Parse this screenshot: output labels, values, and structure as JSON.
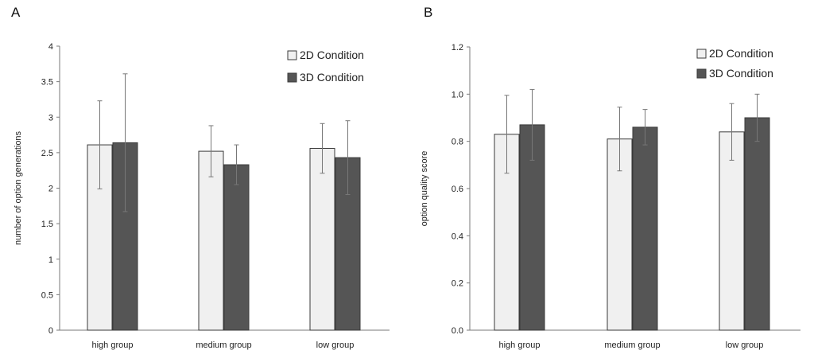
{
  "chart_data": [
    {
      "panel": "A",
      "type": "bar",
      "categories": [
        "high group",
        "medium group",
        "low group"
      ],
      "ylabel": "number of option generations",
      "xlabel": "",
      "ylim": [
        0,
        4
      ],
      "yticks": [
        "0",
        "0.5",
        "1",
        "1.5",
        "2",
        "2.5",
        "3",
        "3.5",
        "4"
      ],
      "grid": false,
      "legend_position": "top-right",
      "error_bars": true,
      "series": [
        {
          "name": "2D Condition",
          "color": "#f0f0f0",
          "values": [
            2.61,
            2.52,
            2.56
          ],
          "errors": [
            0.62,
            0.36,
            0.35
          ]
        },
        {
          "name": "3D Condition",
          "color": "#555555",
          "values": [
            2.64,
            2.33,
            2.43
          ],
          "errors": [
            0.97,
            0.28,
            0.52
          ]
        }
      ]
    },
    {
      "panel": "B",
      "type": "bar",
      "categories": [
        "high group",
        "medium group",
        "low group"
      ],
      "ylabel": "option quality score",
      "xlabel": "",
      "ylim": [
        0,
        1.2
      ],
      "yticks": [
        "0.0",
        "0.2",
        "0.4",
        "0.6",
        "0.8",
        "1.0",
        "1.2"
      ],
      "grid": false,
      "legend_position": "top-right",
      "error_bars": true,
      "series": [
        {
          "name": "2D Condition",
          "color": "#f0f0f0",
          "values": [
            0.83,
            0.81,
            0.84
          ],
          "errors": [
            0.165,
            0.135,
            0.12
          ]
        },
        {
          "name": "3D Condition",
          "color": "#555555",
          "values": [
            0.87,
            0.86,
            0.9
          ],
          "errors": [
            0.15,
            0.075,
            0.1
          ]
        }
      ]
    }
  ]
}
